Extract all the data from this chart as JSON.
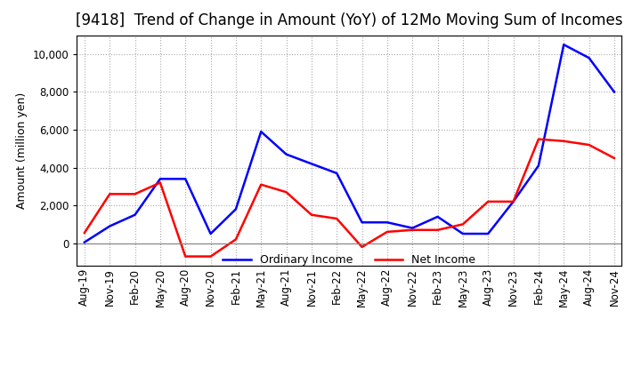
{
  "title": "[9418]  Trend of Change in Amount (YoY) of 12Mo Moving Sum of Incomes",
  "ylabel": "Amount (million yen)",
  "ylim": [
    -1200,
    11000
  ],
  "yticks": [
    0,
    2000,
    4000,
    6000,
    8000,
    10000
  ],
  "x_labels": [
    "Aug-19",
    "Nov-19",
    "Feb-20",
    "May-20",
    "Aug-20",
    "Nov-20",
    "Feb-21",
    "May-21",
    "Aug-21",
    "Nov-21",
    "Feb-22",
    "May-22",
    "Aug-22",
    "Nov-22",
    "Feb-23",
    "May-23",
    "Aug-23",
    "Nov-23",
    "Feb-24",
    "May-24",
    "Aug-24",
    "Nov-24"
  ],
  "ordinary_income": [
    50,
    900,
    1500,
    3400,
    3400,
    500,
    1800,
    5900,
    4700,
    4200,
    3700,
    1100,
    1100,
    800,
    1400,
    500,
    500,
    2200,
    4100,
    10500,
    9800,
    8000
  ],
  "net_income": [
    550,
    2600,
    2600,
    3200,
    -700,
    -700,
    200,
    3100,
    2700,
    1500,
    1300,
    -200,
    600,
    700,
    700,
    1000,
    2200,
    2200,
    5500,
    5400,
    5200,
    4500
  ],
  "line_color_ordinary": "#0000ff",
  "line_color_net": "#ff0000",
  "background_color": "#ffffff",
  "grid_color": "#aaaaaa",
  "title_fontsize": 12,
  "label_fontsize": 9,
  "tick_fontsize": 8.5,
  "legend_labels": [
    "Ordinary Income",
    "Net Income"
  ]
}
